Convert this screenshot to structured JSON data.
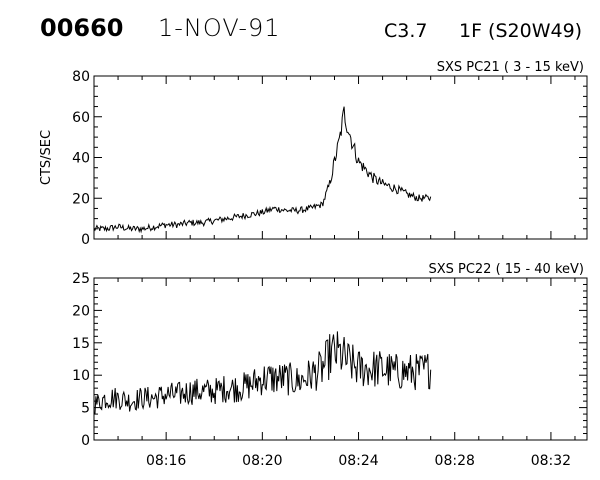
{
  "header": {
    "event_number": "00660",
    "date": "1-NOV-91",
    "goes_class": "C3.7",
    "flare_location": "1F (S20W49)"
  },
  "chart_data": [
    {
      "type": "line",
      "panel": "top",
      "title": "SXS PC21  (  3 - 15 keV)",
      "ylabel": "CTS/SEC",
      "xlabel": "",
      "ylim": [
        0,
        80
      ],
      "yticks": [
        0,
        20,
        40,
        60,
        80
      ],
      "ytick_labels": [
        "0",
        "20",
        "40",
        "60",
        "80"
      ],
      "xlim_minutes": [
        13.0,
        33.5
      ],
      "xticks_minutes": [
        16,
        20,
        24,
        28,
        32
      ],
      "xtick_labels": [],
      "grid": false,
      "series": [
        {
          "x_minutes_after_0800": [
            13.0,
            13.5,
            14.0,
            14.5,
            15.0,
            15.5,
            16.0,
            16.5,
            17.0,
            17.5,
            18.0,
            18.5,
            19.0,
            19.5,
            20.0,
            20.5,
            21.0,
            21.5,
            22.0,
            22.5,
            22.8,
            23.0,
            23.2,
            23.4,
            23.6,
            23.8,
            24.0,
            24.3,
            24.6,
            25.0,
            25.5,
            26.0,
            26.5,
            27.0
          ],
          "y": [
            5,
            5,
            6,
            5,
            5,
            6,
            7,
            7,
            8,
            8,
            9,
            10,
            11,
            12,
            13,
            15,
            14,
            14,
            15,
            17,
            27,
            38,
            48,
            62,
            53,
            45,
            38,
            34,
            30,
            27,
            25,
            22,
            20,
            20
          ]
        }
      ]
    },
    {
      "type": "line",
      "panel": "bottom",
      "title": "SXS PC22  ( 15 - 40 keV)",
      "ylabel": "",
      "xlabel": "",
      "ylim": [
        0,
        25
      ],
      "yticks": [
        0,
        5,
        10,
        15,
        20,
        25
      ],
      "ytick_labels": [
        "0",
        "5",
        "10",
        "15",
        "20",
        "25"
      ],
      "xlim_minutes": [
        13.0,
        33.5
      ],
      "xticks_minutes": [
        16,
        20,
        24,
        28,
        32
      ],
      "xtick_labels": [
        "08:16",
        "08:20",
        "08:24",
        "08:28",
        "08:32"
      ],
      "grid": false,
      "series": [
        {
          "x_minutes_after_0800": [
            13.0,
            13.5,
            14.0,
            14.5,
            15.0,
            15.5,
            16.0,
            16.5,
            17.0,
            17.5,
            18.0,
            18.5,
            19.0,
            19.5,
            20.0,
            20.5,
            21.0,
            21.5,
            22.0,
            22.5,
            22.8,
            23.0,
            23.3,
            23.6,
            24.0,
            24.5,
            25.0,
            25.5,
            26.0,
            26.5,
            27.0
          ],
          "y": [
            5.5,
            6.5,
            6.5,
            6,
            6.5,
            6.5,
            7,
            7,
            7.5,
            7.5,
            7.5,
            8,
            8,
            8.5,
            9.5,
            9.5,
            9.5,
            9,
            10,
            11,
            13,
            13.5,
            13,
            12,
            11,
            11,
            11,
            10.5,
            10.5,
            10.5,
            11
          ]
        }
      ]
    }
  ]
}
